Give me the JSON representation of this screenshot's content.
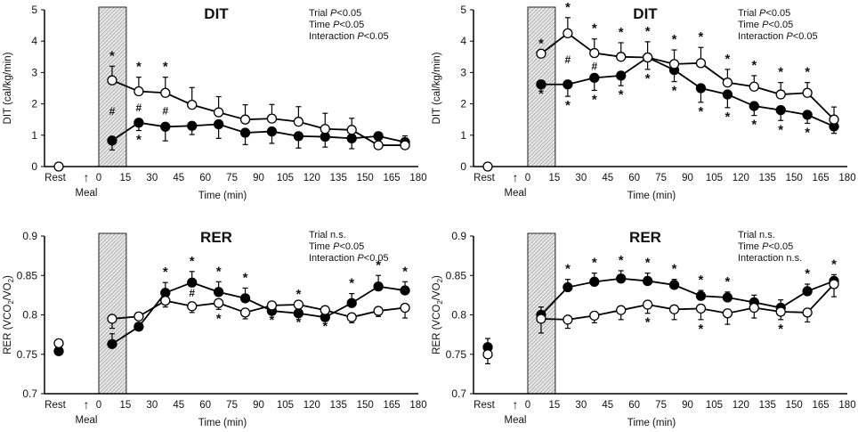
{
  "chart_data": [
    {
      "type": "line",
      "title": "DIT",
      "ylabel": "DIT (cal/kg/min)",
      "xlabel": "Time (min)",
      "ylim": [
        0,
        5
      ],
      "yticks": [
        "0",
        "1",
        "2",
        "3",
        "4",
        "5"
      ],
      "xticks": [
        "Rest",
        "0",
        "15",
        "30",
        "45",
        "60",
        "75",
        "90",
        "105",
        "120",
        "135",
        "150",
        "165",
        "180"
      ],
      "meal_label": "Meal",
      "meal_arrow": "↑",
      "meal_period_minutes": [
        0,
        15
      ],
      "stats": [
        "Trial P<0.05",
        "Time P<0.05",
        "Interaction P<0.05"
      ],
      "x": [
        7.5,
        22.5,
        37.5,
        52.5,
        67.5,
        82.5,
        97.5,
        112.5,
        127.5,
        142.5,
        157.5,
        172.5
      ],
      "series": [
        {
          "name": "open",
          "marker": "open-circle",
          "rest": 0.0,
          "values": [
            2.75,
            2.4,
            2.35,
            1.97,
            1.73,
            1.5,
            1.53,
            1.43,
            1.2,
            1.17,
            0.68,
            0.68
          ],
          "errors": [
            0.45,
            0.45,
            0.5,
            0.55,
            0.5,
            0.47,
            0.45,
            0.48,
            0.5,
            0.37,
            0.0,
            0.3
          ]
        },
        {
          "name": "filled",
          "marker": "filled-circle",
          "rest": null,
          "values": [
            0.83,
            1.4,
            1.27,
            1.3,
            1.35,
            1.08,
            1.12,
            0.97,
            0.95,
            0.9,
            0.97,
            0.78
          ],
          "errors": [
            0.3,
            0.25,
            0.45,
            0.28,
            0.45,
            0.38,
            0.38,
            0.38,
            0.33,
            0.33,
            0.0,
            0.22
          ]
        }
      ],
      "annotations": [
        {
          "x": 7.5,
          "side": "above-open",
          "text": "*"
        },
        {
          "x": 22.5,
          "side": "above-open",
          "text": "*"
        },
        {
          "x": 37.5,
          "side": "above-open",
          "text": "*"
        },
        {
          "x": 7.5,
          "side": "between",
          "text": "#"
        },
        {
          "x": 22.5,
          "side": "between",
          "text": "#"
        },
        {
          "x": 37.5,
          "side": "between",
          "text": "#"
        },
        {
          "x": 22.5,
          "side": "below-filled",
          "text": "*"
        }
      ]
    },
    {
      "type": "line",
      "title": "DIT",
      "ylabel": "DIT (cal/kg/min)",
      "xlabel": "Time (min)",
      "ylim": [
        0,
        5
      ],
      "yticks": [
        "0",
        "1",
        "2",
        "3",
        "4",
        "5"
      ],
      "xticks": [
        "Rest",
        "0",
        "15",
        "30",
        "45",
        "60",
        "75",
        "90",
        "105",
        "120",
        "135",
        "150",
        "165",
        "180"
      ],
      "meal_label": "Meal",
      "meal_arrow": "↑",
      "meal_period_minutes": [
        0,
        15
      ],
      "stats": [
        "Trial P<0.05",
        "Time P<0.05",
        "Interaction P<0.05"
      ],
      "x": [
        7.5,
        22.5,
        37.5,
        52.5,
        67.5,
        82.5,
        97.5,
        112.5,
        127.5,
        142.5,
        157.5,
        172.5
      ],
      "series": [
        {
          "name": "open",
          "marker": "open-circle",
          "rest": 0.0,
          "values": [
            3.6,
            4.25,
            3.62,
            3.5,
            3.48,
            3.27,
            3.3,
            2.68,
            2.55,
            2.3,
            2.35,
            1.5
          ],
          "errors": [
            0.0,
            0.5,
            0.45,
            0.45,
            0.5,
            0.45,
            0.5,
            0.42,
            0.35,
            0.38,
            0.33,
            0.4
          ]
        },
        {
          "name": "filled",
          "marker": "filled-circle",
          "rest": null,
          "values": [
            2.62,
            2.62,
            2.83,
            2.9,
            3.48,
            3.08,
            2.5,
            2.3,
            1.93,
            1.8,
            1.65,
            1.28
          ],
          "errors": [
            0.0,
            0.38,
            0.4,
            0.32,
            0.38,
            0.37,
            0.45,
            0.42,
            0.3,
            0.33,
            0.27,
            0.22
          ]
        }
      ],
      "annotations": [
        {
          "x": 7.5,
          "side": "above-open",
          "text": "*"
        },
        {
          "x": 22.5,
          "side": "above-open",
          "text": "*"
        },
        {
          "x": 37.5,
          "side": "above-open",
          "text": "*"
        },
        {
          "x": 52.5,
          "side": "above-open",
          "text": "*"
        },
        {
          "x": 67.5,
          "side": "above-open",
          "text": "*"
        },
        {
          "x": 82.5,
          "side": "above-open",
          "text": "*"
        },
        {
          "x": 97.5,
          "side": "above-open",
          "text": "*"
        },
        {
          "x": 112.5,
          "side": "above-open",
          "text": "*"
        },
        {
          "x": 127.5,
          "side": "above-open",
          "text": "*"
        },
        {
          "x": 142.5,
          "side": "above-open",
          "text": "*"
        },
        {
          "x": 157.5,
          "side": "above-open",
          "text": "*"
        },
        {
          "x": 22.5,
          "side": "between",
          "text": "#"
        },
        {
          "x": 37.5,
          "side": "between",
          "text": "#"
        },
        {
          "x": 7.5,
          "side": "below-filled",
          "text": "*"
        },
        {
          "x": 22.5,
          "side": "below-filled",
          "text": "*"
        },
        {
          "x": 37.5,
          "side": "below-filled",
          "text": "*"
        },
        {
          "x": 52.5,
          "side": "below-filled",
          "text": "*"
        },
        {
          "x": 67.5,
          "side": "below-filled",
          "text": "*"
        },
        {
          "x": 82.5,
          "side": "below-filled",
          "text": "*"
        },
        {
          "x": 97.5,
          "side": "below-filled",
          "text": "*"
        },
        {
          "x": 112.5,
          "side": "below-filled",
          "text": "*"
        },
        {
          "x": 127.5,
          "side": "below-filled",
          "text": "*"
        },
        {
          "x": 142.5,
          "side": "below-filled",
          "text": "*"
        },
        {
          "x": 157.5,
          "side": "below-filled",
          "text": "*"
        }
      ]
    },
    {
      "type": "line",
      "title": "RER",
      "ylabel": "RER (VCO2/VO2)",
      "xlabel": "Time (min)",
      "ylim": [
        0.7,
        0.9
      ],
      "yticks": [
        "0.7",
        "0.75",
        "0.8",
        "0.85",
        "0.9"
      ],
      "xticks": [
        "Rest",
        "0",
        "15",
        "30",
        "45",
        "60",
        "75",
        "90",
        "105",
        "120",
        "135",
        "150",
        "165",
        "180"
      ],
      "meal_label": "Meal",
      "meal_arrow": "↑",
      "meal_period_minutes": [
        0,
        15
      ],
      "stats": [
        "Trial n.s.",
        "Time P<0.05",
        "Interaction P<0.05"
      ],
      "x": [
        7.5,
        22.5,
        37.5,
        52.5,
        67.5,
        82.5,
        97.5,
        112.5,
        127.5,
        142.5,
        157.5,
        172.5
      ],
      "series": [
        {
          "name": "open",
          "marker": "open-circle",
          "rest": 0.764,
          "values": [
            0.795,
            0.798,
            0.818,
            0.811,
            0.815,
            0.803,
            0.812,
            0.813,
            0.806,
            0.797,
            0.805,
            0.809
          ],
          "errors": [
            -0.012,
            0.0,
            -0.008,
            -0.008,
            -0.008,
            -0.008,
            0.0,
            0.0,
            0.0,
            -0.007,
            -0.007,
            -0.013
          ]
        },
        {
          "name": "filled",
          "marker": "filled-circle",
          "rest": 0.754,
          "values": [
            0.763,
            0.785,
            0.828,
            0.841,
            0.829,
            0.821,
            0.805,
            0.802,
            0.797,
            0.815,
            0.836,
            0.831
          ],
          "errors": [
            0.013,
            0.0,
            0.013,
            0.014,
            0.013,
            0.013,
            0.0,
            0.0,
            0.0,
            0.012,
            0.014,
            0.011
          ]
        }
      ],
      "annotations": [
        {
          "x": 37.5,
          "side": "top",
          "text": "*"
        },
        {
          "x": 52.5,
          "side": "top",
          "text": "*"
        },
        {
          "x": 67.5,
          "side": "top",
          "text": "*"
        },
        {
          "x": 82.5,
          "side": "top",
          "text": "*"
        },
        {
          "x": 112.5,
          "side": "top",
          "text": "*"
        },
        {
          "x": 142.5,
          "side": "top",
          "text": "*"
        },
        {
          "x": 157.5,
          "side": "top",
          "text": "*"
        },
        {
          "x": 172.5,
          "side": "top",
          "text": "*"
        },
        {
          "x": 52.5,
          "side": "between",
          "text": "#"
        },
        {
          "x": 67.5,
          "side": "bottom",
          "text": "*"
        },
        {
          "x": 97.5,
          "side": "bottom",
          "text": "*"
        },
        {
          "x": 112.5,
          "side": "bottom",
          "text": "*"
        },
        {
          "x": 127.5,
          "side": "bottom",
          "text": "*"
        }
      ]
    },
    {
      "type": "line",
      "title": "RER",
      "ylabel": "RER (VCO2/VO2)",
      "xlabel": "Time (min)",
      "ylim": [
        0.7,
        0.9
      ],
      "yticks": [
        "0.7",
        "0.75",
        "0.8",
        "0.85",
        "0.9"
      ],
      "xticks": [
        "Rest",
        "0",
        "15",
        "30",
        "45",
        "60",
        "75",
        "90",
        "105",
        "120",
        "135",
        "150",
        "165",
        "180"
      ],
      "meal_label": "Meal",
      "meal_arrow": "↑",
      "meal_period_minutes": [
        0,
        15
      ],
      "stats": [
        "Trial n.s.",
        "Time P<0.05",
        "Interaction n.s."
      ],
      "x": [
        7.5,
        22.5,
        37.5,
        52.5,
        67.5,
        82.5,
        97.5,
        112.5,
        127.5,
        142.5,
        157.5,
        172.5
      ],
      "series": [
        {
          "name": "open",
          "marker": "open-circle",
          "rest": 0.75,
          "rest_error": -0.012,
          "values": [
            0.795,
            0.794,
            0.799,
            0.806,
            0.813,
            0.807,
            0.808,
            0.802,
            0.809,
            0.804,
            0.803,
            0.839
          ],
          "errors": [
            -0.018,
            -0.011,
            -0.009,
            -0.012,
            -0.011,
            -0.013,
            -0.014,
            -0.014,
            -0.013,
            -0.01,
            -0.012,
            -0.016
          ]
        },
        {
          "name": "filled",
          "marker": "filled-circle",
          "rest": 0.759,
          "rest_error": 0.011,
          "values": [
            0.8,
            0.835,
            0.842,
            0.846,
            0.843,
            0.838,
            0.824,
            0.822,
            0.816,
            0.809,
            0.83,
            0.843
          ],
          "errors": [
            0.01,
            0.01,
            0.011,
            0.01,
            0.01,
            0.007,
            0.007,
            0.007,
            0.009,
            0.01,
            0.009,
            0.008
          ]
        }
      ],
      "annotations": [
        {
          "x": 22.5,
          "side": "top",
          "text": "*"
        },
        {
          "x": 37.5,
          "side": "top",
          "text": "*"
        },
        {
          "x": 52.5,
          "side": "top",
          "text": "*"
        },
        {
          "x": 67.5,
          "side": "top",
          "text": "*"
        },
        {
          "x": 82.5,
          "side": "top",
          "text": "*"
        },
        {
          "x": 97.5,
          "side": "top",
          "text": "*"
        },
        {
          "x": 112.5,
          "side": "top",
          "text": "*"
        },
        {
          "x": 157.5,
          "side": "top",
          "text": "*"
        },
        {
          "x": 172.5,
          "side": "top",
          "text": "*"
        },
        {
          "x": 67.5,
          "side": "bottom",
          "text": "*"
        },
        {
          "x": 97.5,
          "side": "bottom",
          "text": "*"
        },
        {
          "x": 142.5,
          "side": "bottom",
          "text": "*"
        }
      ]
    }
  ]
}
